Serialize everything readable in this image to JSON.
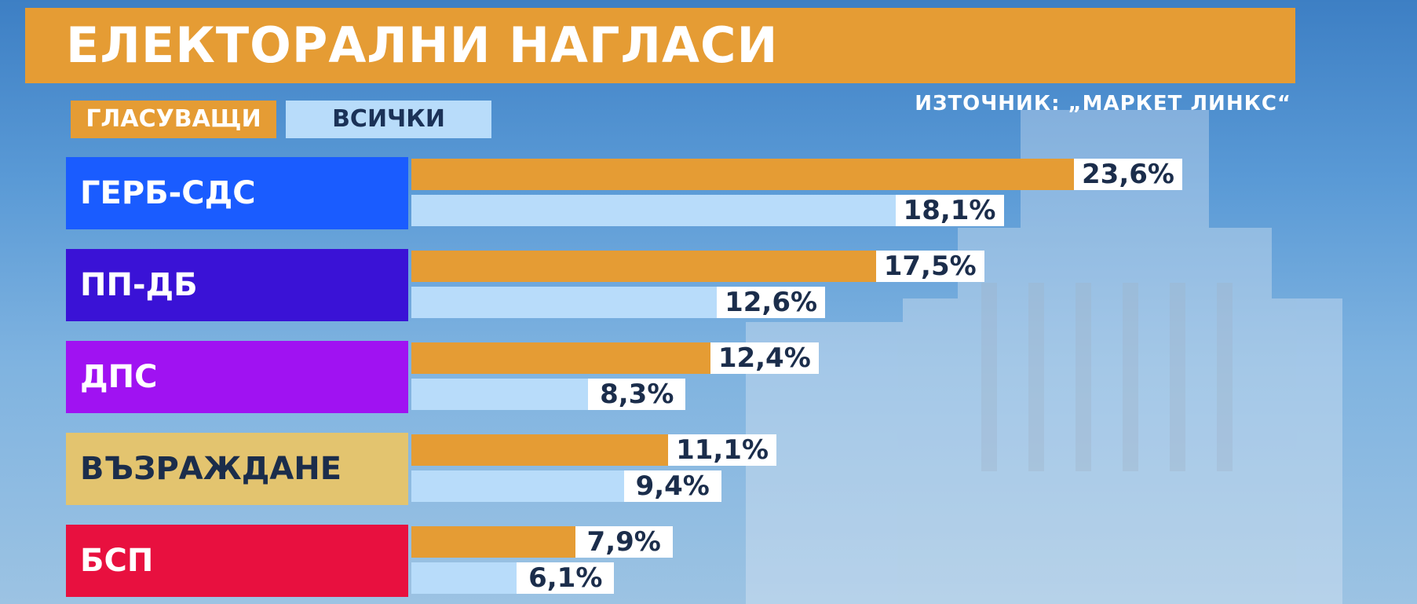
{
  "header": {
    "title": "ЕЛЕКТОРАЛНИ НАГЛАСИ",
    "source": "ИЗТОЧНИК: „МАРКЕТ ЛИНКС“"
  },
  "legend": {
    "voters": "ГЛАСУВАЩИ",
    "all": "ВСИЧКИ"
  },
  "colors": {
    "voters": "#e59c34",
    "all": "#b8dcfa"
  },
  "chart_data": {
    "type": "bar",
    "orientation": "horizontal",
    "categories": [
      "ГЕРБ-СДС",
      "ПП-ДБ",
      "ДПС",
      "ВЪЗРАЖДАНЕ",
      "БСП"
    ],
    "category_colors": [
      "#1a5cff",
      "#3a12d6",
      "#a012f2",
      "#e3c46f",
      "#e8103f"
    ],
    "category_text_colors": [
      "#ffffff",
      "#ffffff",
      "#ffffff",
      "#1b2d4b",
      "#ffffff"
    ],
    "series": [
      {
        "name": "ГЛАСУВАЩИ",
        "color": "#e59c34",
        "values": [
          23.6,
          17.5,
          12.4,
          11.1,
          7.9
        ],
        "labels": [
          "23,6%",
          "17,5%",
          "12,4%",
          "11,1%",
          "7,9%"
        ]
      },
      {
        "name": "ВСИЧКИ",
        "color": "#b8dcfa",
        "values": [
          18.1,
          12.6,
          8.3,
          9.4,
          6.1
        ],
        "labels": [
          "18,1%",
          "12,6%",
          "8,3%",
          "9,4%",
          "6,1%"
        ]
      }
    ],
    "unit": "%"
  }
}
